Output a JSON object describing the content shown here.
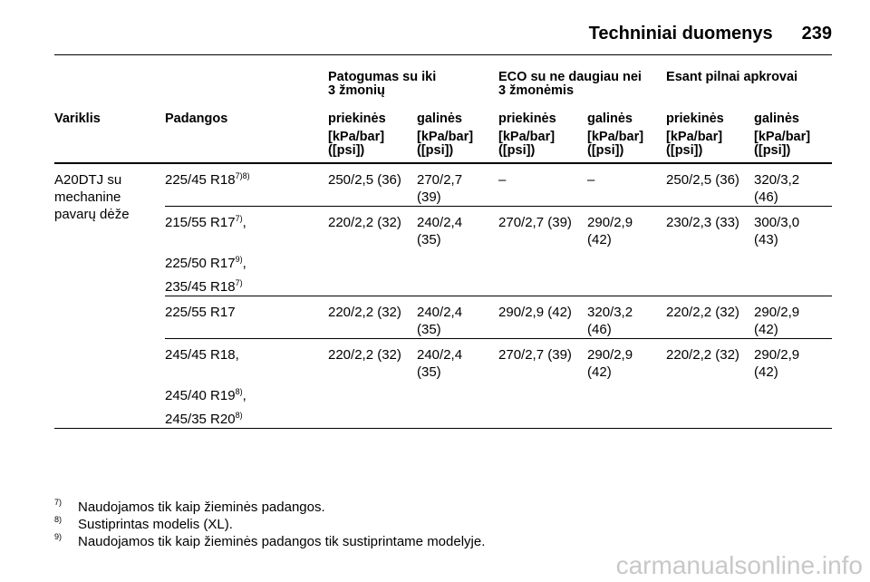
{
  "header": {
    "title": "Techniniai duomenys",
    "page": "239"
  },
  "table": {
    "group_headers": [
      "Patogumas su iki\n3 žmonių",
      "ECO su ne daugiau nei\n3 žmonėmis",
      "Esant pilnai apkrovai"
    ],
    "columns": [
      "Variklis",
      "Padangos",
      "priekinės",
      "galinės",
      "priekinės",
      "galinės",
      "priekinės",
      "galinės"
    ],
    "units": [
      "[kPa/bar]\n([psi])",
      "[kPa/bar]\n([psi])",
      "[kPa/bar]\n([psi])",
      "[kPa/bar]\n([psi])",
      "[kPa/bar]\n([psi])",
      "[kPa/bar]\n([psi])"
    ],
    "engine": "A20DTJ su\nmechanine\npavarų dėže",
    "rows": [
      {
        "tires": [
          {
            "size": "225/45 R18",
            "note": "7)8)"
          }
        ],
        "values": [
          "250/2,5 (36)",
          "270/2,7 (39)",
          "–",
          "–",
          "250/2,5 (36)",
          "320/3,2 (46)"
        ]
      },
      {
        "tires": [
          {
            "size": "215/55 R17",
            "note": "7)",
            "suffix": ","
          },
          {
            "size": "225/50 R17",
            "note": "9)",
            "suffix": ","
          },
          {
            "size": "235/45 R18",
            "note": "7)"
          }
        ],
        "values": [
          "220/2,2 (32)",
          "240/2,4 (35)",
          "270/2,7 (39)",
          "290/2,9 (42)",
          "230/2,3 (33)",
          "300/3,0 (43)"
        ]
      },
      {
        "tires": [
          {
            "size": "225/55 R17"
          }
        ],
        "values": [
          "220/2,2 (32)",
          "240/2,4 (35)",
          "290/2,9 (42)",
          "320/3,2 (46)",
          "220/2,2 (32)",
          "290/2,9 (42)"
        ]
      },
      {
        "tires": [
          {
            "size": "245/45 R18,"
          },
          {
            "size": "245/40 R19",
            "note": "8)",
            "suffix": ","
          },
          {
            "size": "245/35 R20",
            "note": "8)"
          }
        ],
        "values": [
          "220/2,2 (32)",
          "240/2,4 (35)",
          "270/2,7 (39)",
          "290/2,9 (42)",
          "220/2,2 (32)",
          "290/2,9 (42)"
        ]
      }
    ]
  },
  "footnotes": [
    {
      "mark": "7)",
      "text": "Naudojamos tik kaip žieminės padangos."
    },
    {
      "mark": "8)",
      "text": "Sustiprintas modelis (XL)."
    },
    {
      "mark": "9)",
      "text": "Naudojamos tik kaip žieminės padangos tik sustiprintame modelyje."
    }
  ],
  "watermark": "carmanualsonline.info"
}
